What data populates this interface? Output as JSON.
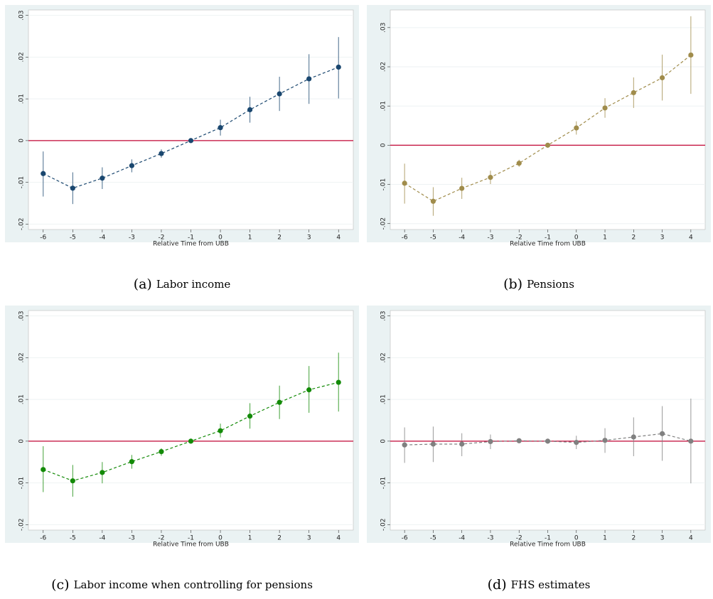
{
  "chart_data": [
    {
      "type": "line",
      "label": "(a)",
      "caption": "Labor income",
      "xlabel": "Relative Time from UBB",
      "color": "#1a476f",
      "ref_line": 0,
      "ref_color": "#c10534",
      "grid": true,
      "x": [
        -6,
        -5,
        -4,
        -3,
        -2,
        -1,
        0,
        1,
        2,
        3,
        4
      ],
      "values": [
        -0.0079,
        -0.0114,
        -0.009,
        -0.006,
        -0.0031,
        0,
        0.0031,
        0.0074,
        0.0112,
        0.0148,
        0.0176
      ],
      "ci_low": [
        -0.0134,
        -0.0152,
        -0.0116,
        -0.0076,
        -0.0041,
        0,
        0.0012,
        0.0043,
        0.0071,
        0.0088,
        0.0101
      ],
      "ci_high": [
        -0.0026,
        -0.0076,
        -0.0064,
        -0.0045,
        -0.0021,
        0,
        0.005,
        0.0105,
        0.0153,
        0.0207,
        0.0248
      ],
      "xlim": [
        -6.5,
        4.5
      ],
      "xticks": [
        -6,
        -5,
        -4,
        -3,
        -2,
        -1,
        0,
        1,
        2,
        3,
        4
      ],
      "ylim": [
        -0.0213,
        0.0313
      ],
      "yticks": [
        {
          "value": -0.02,
          "label": "-.02"
        },
        {
          "value": -0.01,
          "label": "-.01"
        },
        0,
        {
          "value": 0.01,
          "label": ".01"
        },
        {
          "value": 0.02,
          "label": ".02"
        },
        {
          "value": 0.03,
          "label": ".03"
        }
      ]
    },
    {
      "type": "line",
      "label": "(b)",
      "caption": "Pensions",
      "xlabel": "Relative Time from UBB",
      "color": "#a08c4b",
      "ref_line": 0,
      "ref_color": "#c10534",
      "grid": true,
      "x": [
        -6,
        -5,
        -4,
        -3,
        -2,
        -1,
        0,
        1,
        2,
        3,
        4
      ],
      "values": [
        -0.0097,
        -0.0143,
        -0.011,
        -0.0082,
        -0.0046,
        0,
        0.0044,
        0.0095,
        0.0134,
        0.0172,
        0.023
      ],
      "ci_low": [
        -0.0149,
        -0.018,
        -0.0137,
        -0.0099,
        -0.0055,
        0,
        0.0027,
        0.007,
        0.0095,
        0.0114,
        0.0131
      ],
      "ci_high": [
        -0.0047,
        -0.0107,
        -0.0083,
        -0.0065,
        -0.0037,
        0,
        0.0061,
        0.012,
        0.0173,
        0.0231,
        0.0329
      ],
      "xlim": [
        -6.5,
        4.5
      ],
      "xticks": [
        -6,
        -5,
        -4,
        -3,
        -2,
        -1,
        0,
        1,
        2,
        3,
        4
      ],
      "ylim": [
        -0.0215,
        0.0345
      ],
      "yticks": [
        {
          "value": -0.02,
          "label": "-.02"
        },
        {
          "value": -0.01,
          "label": "-.01"
        },
        0,
        {
          "value": 0.01,
          "label": ".01"
        },
        {
          "value": 0.02,
          "label": ".02"
        },
        {
          "value": 0.03,
          "label": ".03"
        }
      ]
    },
    {
      "type": "line",
      "label": "(c)",
      "caption": "Labor income when controlling for pensions",
      "xlabel": "Relative Time from UBB",
      "color": "#138a07",
      "ref_line": 0,
      "ref_color": "#c10534",
      "grid": true,
      "x": [
        -6,
        -5,
        -4,
        -3,
        -2,
        -1,
        0,
        1,
        2,
        3,
        4
      ],
      "values": [
        -0.0068,
        -0.0095,
        -0.0075,
        -0.0049,
        -0.0025,
        0,
        0.0025,
        0.006,
        0.0093,
        0.0123,
        0.0141
      ],
      "ci_low": [
        -0.0122,
        -0.0133,
        -0.0101,
        -0.0066,
        -0.0035,
        0,
        0.0009,
        0.003,
        0.0053,
        0.0068,
        0.0071
      ],
      "ci_high": [
        -0.0012,
        -0.0057,
        -0.005,
        -0.0033,
        -0.0017,
        0,
        0.0042,
        0.0091,
        0.0133,
        0.018,
        0.0212
      ],
      "xlim": [
        -6.5,
        4.5
      ],
      "xticks": [
        -6,
        -5,
        -4,
        -3,
        -2,
        -1,
        0,
        1,
        2,
        3,
        4
      ],
      "ylim": [
        -0.0213,
        0.0313
      ],
      "yticks": [
        {
          "value": -0.02,
          "label": "-.02"
        },
        {
          "value": -0.01,
          "label": "-.01"
        },
        0,
        {
          "value": 0.01,
          "label": ".01"
        },
        {
          "value": 0.02,
          "label": ".02"
        },
        {
          "value": 0.03,
          "label": ".03"
        }
      ]
    },
    {
      "type": "line",
      "label": "(d)",
      "caption": "FHS estimates",
      "xlabel": "Relative Time from UBB",
      "color": "#808080",
      "ref_line": 0,
      "ref_color": "#c10534",
      "grid": true,
      "x": [
        -6,
        -5,
        -4,
        -3,
        -2,
        -1,
        0,
        1,
        2,
        3,
        4
      ],
      "values": [
        -0.0009,
        -0.0007,
        -0.0007,
        -0.0001,
        0.0001,
        0,
        -0.0003,
        0.0002,
        0.001,
        0.0018,
        0
      ],
      "ci_low": [
        -0.0052,
        -0.005,
        -0.0036,
        -0.0019,
        -0.0001,
        0,
        -0.0019,
        -0.0028,
        -0.0036,
        -0.0047,
        -0.0101
      ],
      "ci_high": [
        0.0033,
        0.0035,
        0.0019,
        0.0016,
        0.0003,
        0,
        0.0013,
        0.0031,
        0.0057,
        0.0084,
        0.0102
      ],
      "xlim": [
        -6.5,
        4.5
      ],
      "xticks": [
        -6,
        -5,
        -4,
        -3,
        -2,
        -1,
        0,
        1,
        2,
        3,
        4
      ],
      "ylim": [
        -0.0213,
        0.0313
      ],
      "yticks": [
        {
          "value": -0.02,
          "label": "-.02"
        },
        {
          "value": -0.01,
          "label": "-.01"
        },
        0,
        {
          "value": 0.01,
          "label": ".01"
        },
        {
          "value": 0.02,
          "label": ".02"
        },
        {
          "value": 0.03,
          "label": ".03"
        }
      ]
    }
  ]
}
